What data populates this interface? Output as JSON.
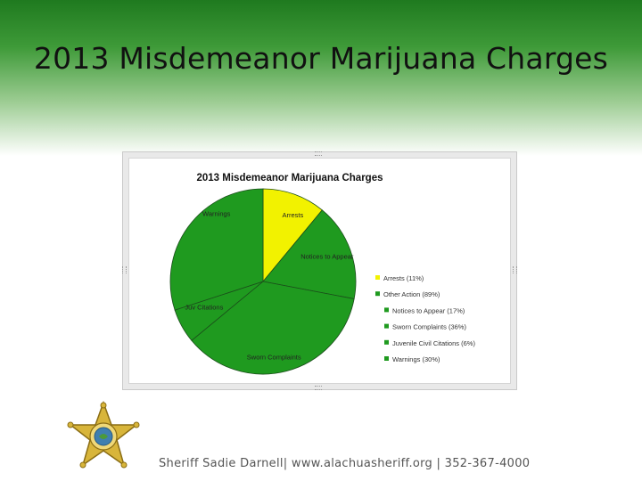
{
  "slide": {
    "title": "2013 Misdemeanor Marijuana Charges",
    "footer": "Sheriff Sadie Darnell| www.alachuasheriff.org | 352-367-4000"
  },
  "colors": {
    "yellow": "#f2f200",
    "green": "#1f9a1f",
    "band": "#2e8b2e"
  },
  "chart_data": {
    "type": "pie",
    "title": "2013 Misdemeanor Marijuana Charges",
    "series": [
      {
        "label": "Arrests",
        "value": 11,
        "color": "#f2f200"
      },
      {
        "label": "Notices to Appear",
        "value": 17,
        "color": "#1f9a1f"
      },
      {
        "label": "Sworn Complaints",
        "value": 36,
        "color": "#1f9a1f"
      },
      {
        "label": "Juv Citations",
        "value": 6,
        "color": "#1f9a1f"
      },
      {
        "label": "Warnings",
        "value": 30,
        "color": "#1f9a1f"
      }
    ],
    "legend": [
      {
        "text": "Arrests (11%)",
        "color": "#f2f200",
        "indent": 0
      },
      {
        "text": "Other Action (89%)",
        "color": "#1f9a1f",
        "indent": 0
      },
      {
        "text": "Notices to Appear (17%)",
        "color": "#1f9a1f",
        "indent": 1
      },
      {
        "text": "Sworn Complaints (36%)",
        "color": "#1f9a1f",
        "indent": 1
      },
      {
        "text": "Juvenile Civil Citations (6%)",
        "color": "#1f9a1f",
        "indent": 1
      },
      {
        "text": "Warnings (30%)",
        "color": "#1f9a1f",
        "indent": 1
      }
    ],
    "legend_position": "right"
  }
}
